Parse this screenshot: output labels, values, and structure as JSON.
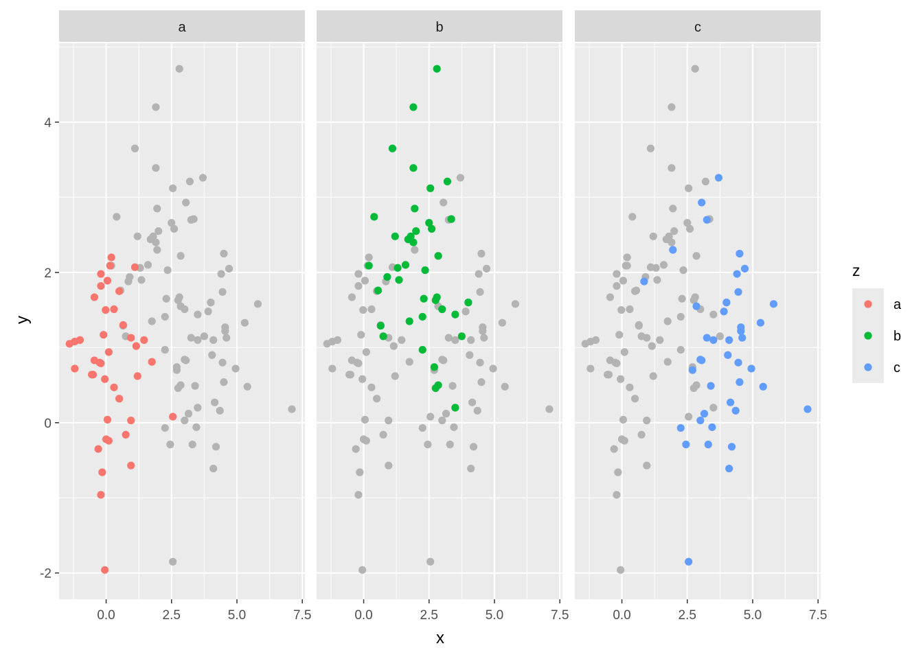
{
  "chart_data": {
    "type": "scatter",
    "facet_by": "z",
    "panels": [
      "a",
      "b",
      "c"
    ],
    "xlabel": "x",
    "ylabel": "y",
    "xlim": [
      -1.8,
      7.6
    ],
    "ylim": [
      -2.35,
      5.05
    ],
    "xticks": [
      0,
      2.5,
      5,
      7.5
    ],
    "xtick_labels": [
      "0.0",
      "2.5",
      "5.0",
      "7.5"
    ],
    "yticks": [
      -2,
      0,
      2,
      4
    ],
    "ytick_labels": [
      "-2",
      "0",
      "2",
      "4"
    ],
    "grid": true,
    "background_color": "#ebebeb",
    "strip_color": "#d9d9d9",
    "inactive_point_color": "#b3b3b3",
    "legend": {
      "title": "z",
      "position": "right",
      "entries": [
        {
          "label": "a",
          "color": "#f8766d"
        },
        {
          "label": "b",
          "color": "#00ba38"
        },
        {
          "label": "c",
          "color": "#619cff"
        }
      ]
    },
    "series": [
      {
        "name": "a",
        "color": "#f8766d",
        "points": [
          [
            -1.4,
            1.05
          ],
          [
            -1.2,
            1.08
          ],
          [
            -1.0,
            1.1
          ],
          [
            -1.2,
            0.72
          ],
          [
            -0.45,
            1.67
          ],
          [
            -0.2,
            1.98
          ],
          [
            -0.2,
            1.82
          ],
          [
            0.2,
            2.2
          ],
          [
            0.15,
            2.09
          ],
          [
            1.1,
            2.07
          ],
          [
            0.05,
            1.89
          ],
          [
            0.5,
            1.75
          ],
          [
            -0.02,
            1.5
          ],
          [
            0.3,
            1.51
          ],
          [
            0.65,
            1.3
          ],
          [
            -0.1,
            1.17
          ],
          [
            0.95,
            1.13
          ],
          [
            1.45,
            1.1
          ],
          [
            1.15,
            1.02
          ],
          [
            0.1,
            0.94
          ],
          [
            -0.45,
            0.83
          ],
          [
            -0.25,
            0.8
          ],
          [
            -0.2,
            0.79
          ],
          [
            1.75,
            0.81
          ],
          [
            -0.5,
            0.64
          ],
          [
            -0.55,
            0.64
          ],
          [
            1.2,
            0.62
          ],
          [
            -0.05,
            0.58
          ],
          [
            0.3,
            0.47
          ],
          [
            0.5,
            0.32
          ],
          [
            2.55,
            0.08
          ],
          [
            0.05,
            0.04
          ],
          [
            0.95,
            0.03
          ],
          [
            0.75,
            -0.16
          ],
          [
            0.0,
            -0.22
          ],
          [
            0.1,
            -0.24
          ],
          [
            -0.3,
            -0.35
          ],
          [
            0.95,
            -0.57
          ],
          [
            -0.15,
            -0.66
          ],
          [
            -0.2,
            -0.96
          ],
          [
            -0.05,
            -1.96
          ]
        ]
      },
      {
        "name": "b",
        "color": "#00ba38",
        "points": [
          [
            2.8,
            4.71
          ],
          [
            1.9,
            4.2
          ],
          [
            1.1,
            3.65
          ],
          [
            1.9,
            3.39
          ],
          [
            2.55,
            3.12
          ],
          [
            3.2,
            3.21
          ],
          [
            1.95,
            2.85
          ],
          [
            0.4,
            2.74
          ],
          [
            3.35,
            2.71
          ],
          [
            2.5,
            2.66
          ],
          [
            2.6,
            2.58
          ],
          [
            2.0,
            2.55
          ],
          [
            1.2,
            2.48
          ],
          [
            1.8,
            2.48
          ],
          [
            1.7,
            2.44
          ],
          [
            1.9,
            2.4
          ],
          [
            2.85,
            2.22
          ],
          [
            1.6,
            2.1
          ],
          [
            0.2,
            2.09
          ],
          [
            1.3,
            2.06
          ],
          [
            2.35,
            2.03
          ],
          [
            0.9,
            1.94
          ],
          [
            1.35,
            1.9
          ],
          [
            0.55,
            1.76
          ],
          [
            2.3,
            1.65
          ],
          [
            2.8,
            1.67
          ],
          [
            2.75,
            1.63
          ],
          [
            4.0,
            1.6
          ],
          [
            3.0,
            1.51
          ],
          [
            3.5,
            1.44
          ],
          [
            2.25,
            1.41
          ],
          [
            1.75,
            1.35
          ],
          [
            0.65,
            1.29
          ],
          [
            3.75,
            1.15
          ],
          [
            0.75,
            1.15
          ],
          [
            2.25,
            0.97
          ],
          [
            2.7,
            0.74
          ],
          [
            2.85,
            0.5
          ],
          [
            2.75,
            0.46
          ],
          [
            3.5,
            0.2
          ]
        ]
      },
      {
        "name": "c",
        "color": "#619cff",
        "points": [
          [
            3.7,
            3.26
          ],
          [
            3.05,
            2.93
          ],
          [
            3.25,
            2.7
          ],
          [
            1.95,
            2.3
          ],
          [
            4.5,
            2.25
          ],
          [
            4.7,
            2.05
          ],
          [
            4.4,
            1.98
          ],
          [
            0.85,
            1.88
          ],
          [
            4.45,
            1.74
          ],
          [
            4.0,
            1.6
          ],
          [
            5.8,
            1.58
          ],
          [
            2.85,
            1.55
          ],
          [
            3.9,
            1.48
          ],
          [
            5.3,
            1.33
          ],
          [
            4.55,
            1.27
          ],
          [
            4.55,
            1.22
          ],
          [
            3.25,
            1.13
          ],
          [
            4.6,
            1.13
          ],
          [
            3.5,
            1.1
          ],
          [
            4.1,
            1.1
          ],
          [
            4.05,
            0.9
          ],
          [
            3.0,
            0.84
          ],
          [
            3.05,
            0.83
          ],
          [
            4.45,
            0.8
          ],
          [
            4.95,
            0.72
          ],
          [
            2.7,
            0.7
          ],
          [
            4.5,
            0.54
          ],
          [
            3.4,
            0.49
          ],
          [
            5.4,
            0.48
          ],
          [
            4.15,
            0.27
          ],
          [
            7.1,
            0.18
          ],
          [
            4.35,
            0.16
          ],
          [
            3.15,
            0.12
          ],
          [
            3.0,
            0.03
          ],
          [
            2.25,
            -0.07
          ],
          [
            3.45,
            -0.06
          ],
          [
            2.45,
            -0.29
          ],
          [
            3.3,
            -0.29
          ],
          [
            4.2,
            -0.32
          ],
          [
            4.1,
            -0.61
          ],
          [
            2.55,
            -1.85
          ]
        ]
      }
    ]
  }
}
